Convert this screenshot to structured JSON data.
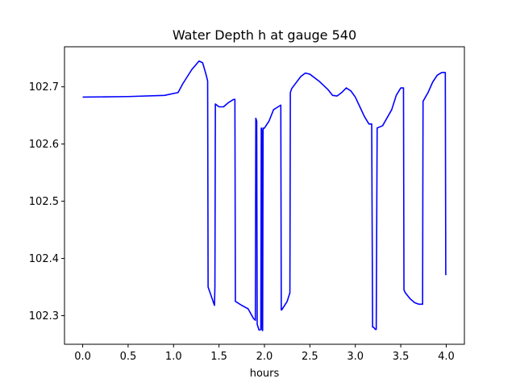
{
  "chart_data": {
    "type": "line",
    "title": "Water Depth h at gauge 540",
    "xlabel": "hours",
    "ylabel": "",
    "xlim": [
      -0.2,
      4.2
    ],
    "ylim": [
      102.25,
      102.77
    ],
    "x_ticks": [
      0.0,
      0.5,
      1.0,
      1.5,
      2.0,
      2.5,
      3.0,
      3.5,
      4.0
    ],
    "x_tick_labels": [
      "0.0",
      "0.5",
      "1.0",
      "1.5",
      "2.0",
      "2.5",
      "3.0",
      "3.5",
      "4.0"
    ],
    "y_ticks": [
      102.3,
      102.4,
      102.5,
      102.6,
      102.7
    ],
    "y_tick_labels": [
      "102.3",
      "102.4",
      "102.5",
      "102.6",
      "102.7"
    ],
    "grid": false,
    "series": [
      {
        "color": "#0000ff",
        "x": [
          0.0,
          0.5,
          0.9,
          1.05,
          1.1,
          1.2,
          1.28,
          1.32,
          1.36,
          1.375,
          1.38,
          1.45,
          1.455,
          1.46,
          1.5,
          1.55,
          1.6,
          1.66,
          1.675,
          1.68,
          1.7,
          1.75,
          1.82,
          1.88,
          1.9,
          1.905,
          1.915,
          1.92,
          1.93,
          1.94,
          1.95,
          1.96,
          1.965,
          1.97,
          1.975,
          1.98,
          1.985,
          1.99,
          2.0,
          2.05,
          2.1,
          2.15,
          2.18,
          2.185,
          2.19,
          2.25,
          2.28,
          2.285,
          2.3,
          2.4,
          2.45,
          2.5,
          2.6,
          2.7,
          2.75,
          2.8,
          2.85,
          2.9,
          2.95,
          3.0,
          3.05,
          3.1,
          3.15,
          3.18,
          3.19,
          3.2,
          3.22,
          3.23,
          3.24,
          3.3,
          3.4,
          3.45,
          3.5,
          3.53,
          3.535,
          3.55,
          3.6,
          3.65,
          3.7,
          3.74,
          3.745,
          3.75,
          3.8,
          3.85,
          3.9,
          3.95,
          3.99,
          3.995,
          4.0
        ],
        "y": [
          102.682,
          102.683,
          102.685,
          102.69,
          102.705,
          102.73,
          102.745,
          102.742,
          102.72,
          102.71,
          102.35,
          102.318,
          102.35,
          102.67,
          102.665,
          102.665,
          102.672,
          102.678,
          102.678,
          102.325,
          102.323,
          102.318,
          102.312,
          102.295,
          102.292,
          102.645,
          102.64,
          102.285,
          102.28,
          102.275,
          102.275,
          102.276,
          102.628,
          102.625,
          102.275,
          102.274,
          102.628,
          102.627,
          102.628,
          102.64,
          102.66,
          102.665,
          102.668,
          102.31,
          102.31,
          102.325,
          102.34,
          102.69,
          102.697,
          102.718,
          102.724,
          102.722,
          102.71,
          102.695,
          102.685,
          102.684,
          102.69,
          102.698,
          102.693,
          102.682,
          102.665,
          102.648,
          102.635,
          102.635,
          102.28,
          102.28,
          102.276,
          102.276,
          102.628,
          102.632,
          102.66,
          102.685,
          102.698,
          102.698,
          102.345,
          102.34,
          102.33,
          102.323,
          102.32,
          102.32,
          102.675,
          102.676,
          102.69,
          102.708,
          102.72,
          102.725,
          102.725,
          102.372,
          102.371
        ]
      }
    ]
  }
}
